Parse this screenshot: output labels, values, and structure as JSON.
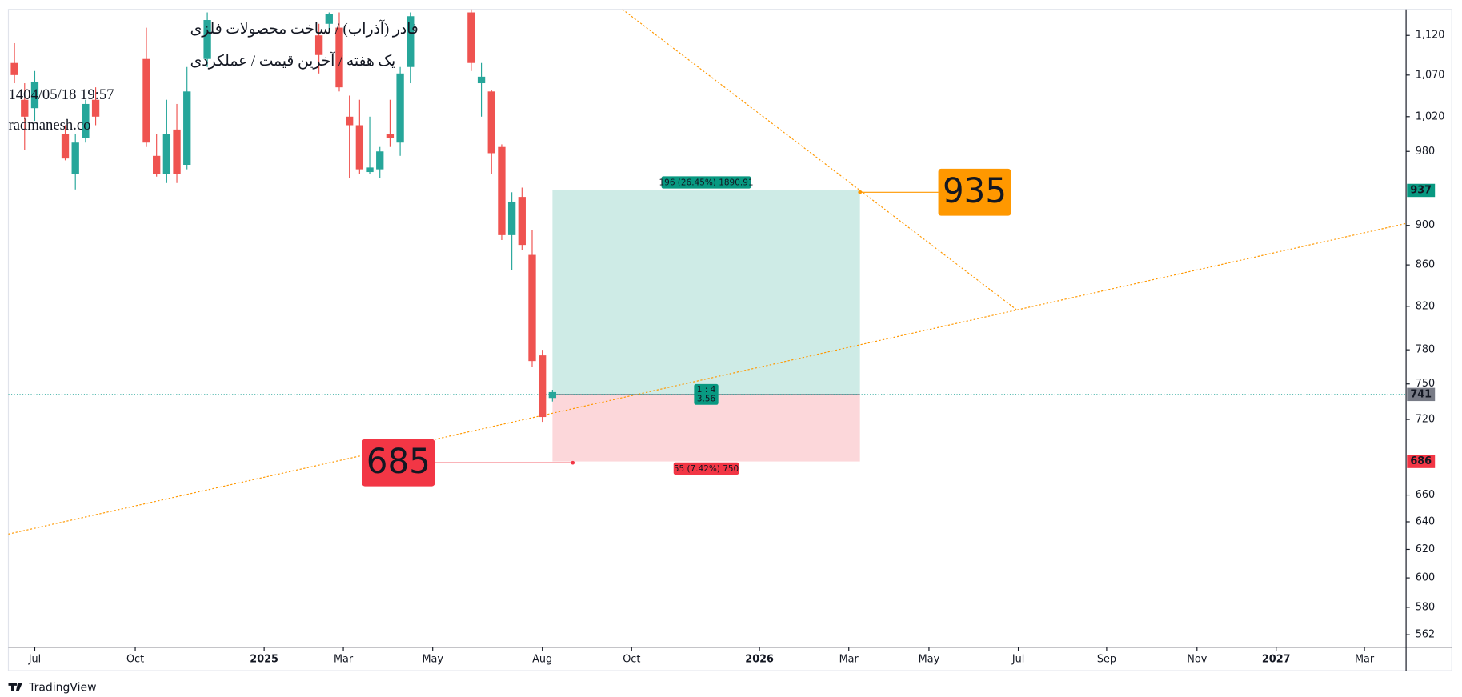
{
  "chart_data": {
    "type": "candlestick",
    "info": [
      "فادر (آذراب) / ساخت محصولات فلزی",
      "یک هفته / آخرین قیمت / عملکردی",
      "1404/05/18 19:57",
      "radmanesh.co"
    ],
    "brand": "TradingView",
    "log_scale": true,
    "up_color": "#26a69a",
    "down_color": "#ef5350",
    "x": [
      1,
      2,
      3,
      6,
      7,
      8,
      9,
      14,
      15,
      16,
      17,
      18,
      20,
      31,
      32,
      33,
      34,
      35,
      36,
      37,
      38,
      39,
      40,
      46,
      47,
      48,
      49,
      50,
      51,
      52,
      53,
      54
    ],
    "open": [
      1085,
      1040,
      1030,
      1000,
      955,
      995,
      1040,
      1090,
      975,
      955,
      1005,
      965,
      1090,
      1120,
      1135,
      1130,
      1020,
      1010,
      957,
      960,
      1000,
      990,
      1080,
      1150,
      1060,
      1050,
      985,
      890,
      930,
      870,
      775,
      738
    ],
    "high": [
      1110,
      1060,
      1075,
      1010,
      1000,
      1040,
      1055,
      1130,
      1000,
      1040,
      1035,
      1080,
      1150,
      1135,
      1150,
      1150,
      1045,
      1040,
      1020,
      985,
      1040,
      1080,
      1150,
      1154,
      1085,
      1052,
      988,
      935,
      940,
      895,
      780,
      745
    ],
    "low": [
      1060,
      982,
      1015,
      970,
      938,
      990,
      1010,
      985,
      952,
      945,
      945,
      960,
      1080,
      1072,
      1125,
      1050,
      950,
      955,
      955,
      950,
      985,
      975,
      1060,
      1075,
      1020,
      955,
      885,
      855,
      875,
      765,
      718,
      735
    ],
    "close": [
      1070,
      1020,
      1062,
      972,
      990,
      1035,
      1020,
      990,
      955,
      1000,
      955,
      1050,
      1140,
      1095,
      1148,
      1055,
      1010,
      960,
      962,
      980,
      995,
      1072,
      1145,
      1085,
      1068,
      978,
      890,
      925,
      880,
      770,
      722,
      743
    ],
    "xlim": [
      0.4,
      138.1
    ],
    "xticks": [
      {
        "value": 3.0,
        "label": "Jul"
      },
      {
        "value": 12.9,
        "label": "Oct"
      },
      {
        "value": 25.6,
        "label": "2025"
      },
      {
        "value": 33.4,
        "label": "Mar"
      },
      {
        "value": 42.2,
        "label": "May"
      },
      {
        "value": 53.0,
        "label": "Aug"
      },
      {
        "value": 61.8,
        "label": "Oct"
      },
      {
        "value": 74.4,
        "label": "2026"
      },
      {
        "value": 83.2,
        "label": "Mar"
      },
      {
        "value": 91.1,
        "label": "May"
      },
      {
        "value": 99.9,
        "label": "Jul"
      },
      {
        "value": 108.6,
        "label": "Sep"
      },
      {
        "value": 117.5,
        "label": "Nov"
      },
      {
        "value": 125.3,
        "label": "2027"
      },
      {
        "value": 134.0,
        "label": "Mar"
      }
    ],
    "ylim": [
      554,
      1154
    ],
    "yticks": [
      {
        "value": 1120,
        "label": "1,120"
      },
      {
        "value": 1070,
        "label": "1,070"
      },
      {
        "value": 1020,
        "label": "1,020"
      },
      980,
      900,
      860,
      820,
      780,
      750,
      720,
      660,
      640,
      620,
      600,
      580,
      562
    ],
    "trendlines": [
      {
        "x": [
          0.4,
          138.1
        ],
        "y": [
          631,
          902
        ],
        "color": "#ff9800"
      },
      {
        "x": [
          60.9,
          99.7
        ],
        "y": [
          1154,
          817
        ],
        "color": "#ff9800"
      }
    ],
    "position": {
      "x": [
        54,
        84.3
      ],
      "entry": 741,
      "target": 937,
      "stop": 686,
      "profit_label": "196 (26.45%) 1890.91",
      "loss_label": "55 (7.42%) 750",
      "ratio_label": "1 : 4",
      "ratio_value": 3.56
    },
    "callouts": [
      {
        "value": 935,
        "x": 84.3,
        "color": "#ff9800"
      },
      {
        "value": 685,
        "x": 56,
        "color": "#f23645"
      }
    ]
  }
}
